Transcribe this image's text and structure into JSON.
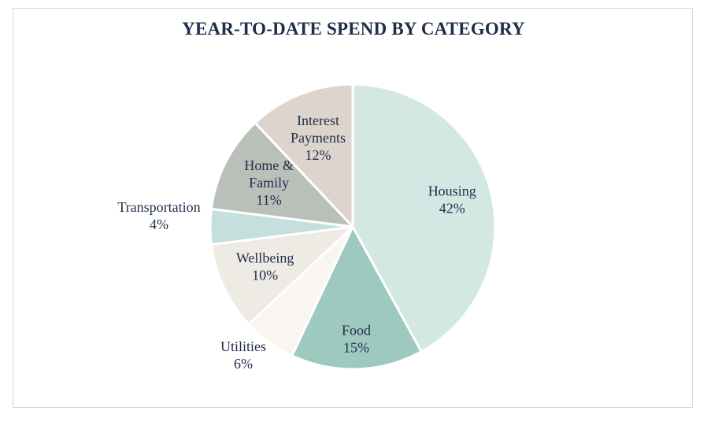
{
  "chart_data": {
    "type": "pie",
    "title": "YEAR-TO-DATE SPEND BY CATEGORY",
    "slices": [
      {
        "name": "Housing",
        "value": 42,
        "label": "42%",
        "color": "#d3e8e3"
      },
      {
        "name": "Food",
        "value": 15,
        "label": "15%",
        "color": "#9ec9bf"
      },
      {
        "name": "Utilities",
        "value": 6,
        "label": "6%",
        "color": "#f9f6f1"
      },
      {
        "name": "Wellbeing",
        "value": 10,
        "label": "10%",
        "color": "#eeeae4"
      },
      {
        "name": "Transportation",
        "value": 4,
        "label": "4%",
        "color": "#c5e0dc"
      },
      {
        "name": "Home & Family",
        "value": 11,
        "label": "11%",
        "color": "#b9bfb9"
      },
      {
        "name": "Interest Payments",
        "value": 12,
        "label": "12%",
        "color": "#ddd5cb"
      }
    ],
    "start_angle": "12 o'clock",
    "direction": "clockwise",
    "legend": "none",
    "label_color": "#1f2d4a"
  }
}
